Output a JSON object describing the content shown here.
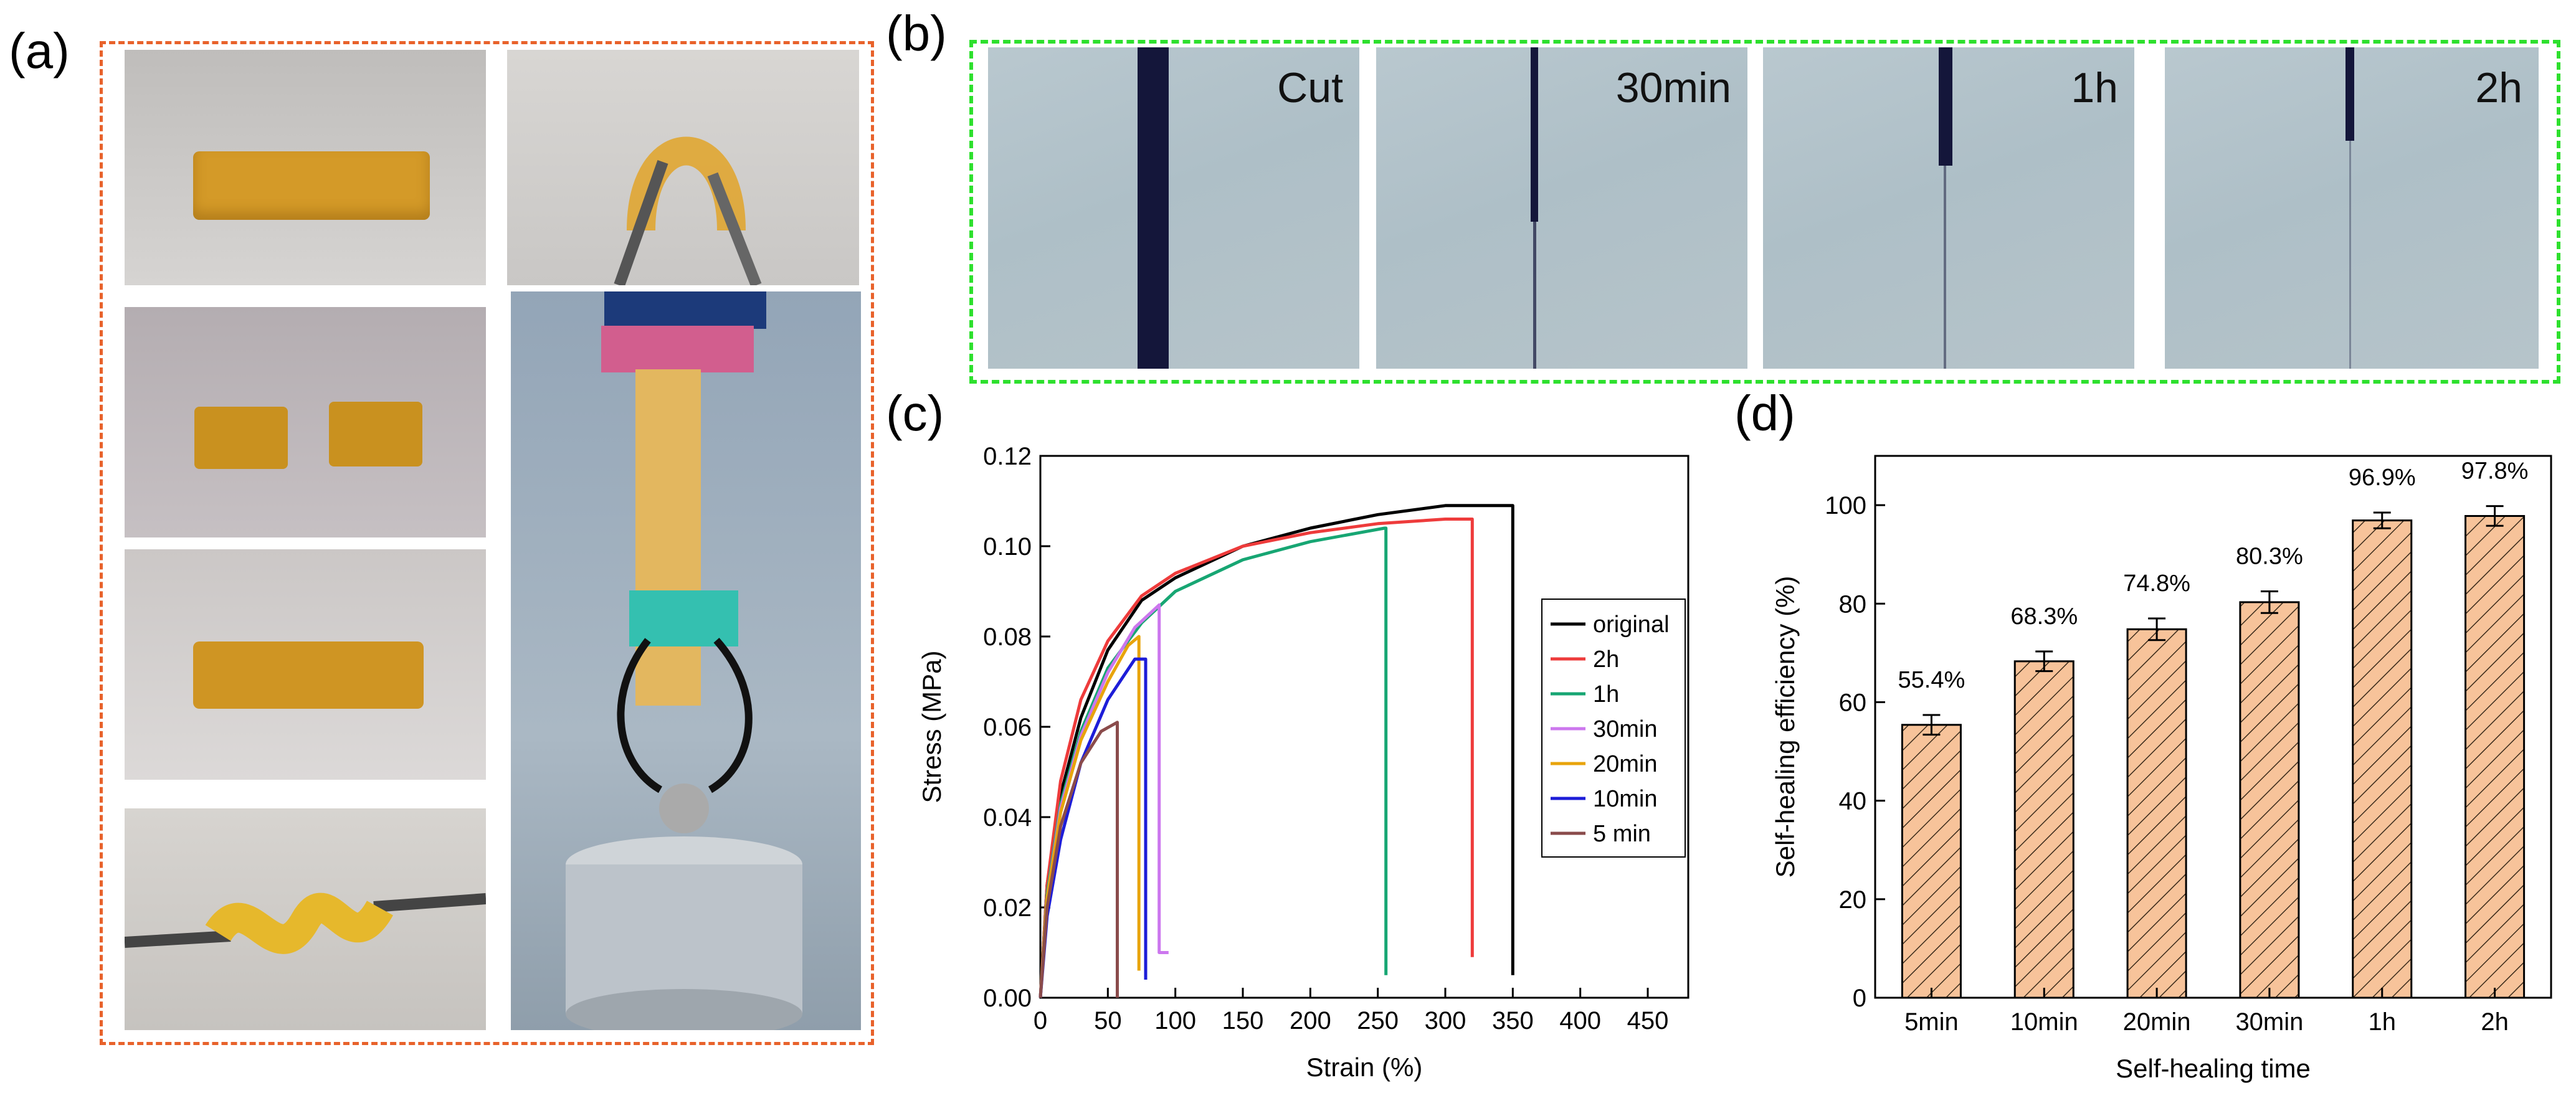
{
  "panels": {
    "a": {
      "label": "(a)"
    },
    "b": {
      "label": "(b)",
      "frames": [
        {
          "label": "Cut"
        },
        {
          "label": "30min"
        },
        {
          "label": "1h"
        },
        {
          "label": "2h"
        }
      ]
    },
    "c": {
      "label": "(c)"
    },
    "d": {
      "label": "(d)"
    }
  },
  "colors": {
    "panel_a_border": "#e8622b",
    "panel_b_border": "#2ee02e",
    "bar_fill": "#f7c39a",
    "sample_amber": "#d9a12a"
  },
  "chart_data": [
    {
      "type": "line",
      "title": "",
      "xlabel": "Strain (%)",
      "ylabel": "Stress (MPa)",
      "xlim": [
        0,
        480
      ],
      "ylim": [
        0,
        0.12
      ],
      "xticks": [
        "0",
        "50",
        "100",
        "150",
        "200",
        "250",
        "300",
        "350",
        "400",
        "450"
      ],
      "yticks": [
        "0.00",
        "0.02",
        "0.04",
        "0.06",
        "0.08",
        "0.10",
        "0.12"
      ],
      "legend_position": "right",
      "series": [
        {
          "name": "original",
          "color": "#000000",
          "points": [
            [
              0,
              0
            ],
            [
              5,
              0.025
            ],
            [
              15,
              0.045
            ],
            [
              30,
              0.062
            ],
            [
              50,
              0.077
            ],
            [
              75,
              0.088
            ],
            [
              100,
              0.093
            ],
            [
              150,
              0.1
            ],
            [
              200,
              0.104
            ],
            [
              250,
              0.107
            ],
            [
              300,
              0.109
            ],
            [
              345,
              0.109
            ],
            [
              350,
              0.109
            ],
            [
              350,
              0.005
            ]
          ]
        },
        {
          "name": "2h",
          "color": "#ee3b3b",
          "points": [
            [
              0,
              0
            ],
            [
              5,
              0.025
            ],
            [
              15,
              0.048
            ],
            [
              30,
              0.066
            ],
            [
              50,
              0.079
            ],
            [
              75,
              0.089
            ],
            [
              100,
              0.094
            ],
            [
              150,
              0.1
            ],
            [
              200,
              0.103
            ],
            [
              250,
              0.105
            ],
            [
              300,
              0.106
            ],
            [
              320,
              0.106
            ],
            [
              320,
              0.009
            ]
          ]
        },
        {
          "name": "1h",
          "color": "#17a673",
          "points": [
            [
              0,
              0
            ],
            [
              5,
              0.023
            ],
            [
              15,
              0.043
            ],
            [
              30,
              0.059
            ],
            [
              50,
              0.073
            ],
            [
              75,
              0.083
            ],
            [
              100,
              0.09
            ],
            [
              150,
              0.097
            ],
            [
              200,
              0.101
            ],
            [
              255,
              0.104
            ],
            [
              256,
              0.104
            ],
            [
              256,
              0.005
            ]
          ]
        },
        {
          "name": "30min",
          "color": "#cc77ee",
          "points": [
            [
              0,
              0
            ],
            [
              5,
              0.022
            ],
            [
              15,
              0.042
            ],
            [
              30,
              0.058
            ],
            [
              50,
              0.072
            ],
            [
              70,
              0.082
            ],
            [
              88,
              0.087
            ],
            [
              88,
              0.01
            ],
            [
              95,
              0.01
            ]
          ]
        },
        {
          "name": "20min",
          "color": "#e8a40c",
          "points": [
            [
              0,
              0
            ],
            [
              5,
              0.022
            ],
            [
              15,
              0.041
            ],
            [
              30,
              0.057
            ],
            [
              50,
              0.07
            ],
            [
              65,
              0.078
            ],
            [
              73,
              0.08
            ],
            [
              73,
              0.006
            ]
          ]
        },
        {
          "name": "10min",
          "color": "#1d1dd8",
          "points": [
            [
              0,
              0
            ],
            [
              5,
              0.018
            ],
            [
              15,
              0.035
            ],
            [
              30,
              0.052
            ],
            [
              50,
              0.066
            ],
            [
              70,
              0.075
            ],
            [
              78,
              0.075
            ],
            [
              78,
              0.004
            ]
          ]
        },
        {
          "name": "5 min",
          "color": "#8a4b4b",
          "points": [
            [
              0,
              0
            ],
            [
              5,
              0.02
            ],
            [
              15,
              0.038
            ],
            [
              30,
              0.052
            ],
            [
              45,
              0.059
            ],
            [
              57,
              0.061
            ],
            [
              57,
              0
            ]
          ]
        }
      ]
    },
    {
      "type": "bar",
      "title": "",
      "xlabel": "Self-healing time",
      "ylabel": "Self-healing efficiency (%)",
      "ylim": [
        0,
        110
      ],
      "yticks": [
        "0",
        "20",
        "40",
        "60",
        "80",
        "100"
      ],
      "categories": [
        "5min",
        "10min",
        "20min",
        "30min",
        "1h",
        "2h"
      ],
      "values": [
        55.4,
        68.3,
        74.8,
        80.3,
        96.9,
        97.8
      ],
      "errors": [
        2.0,
        2.0,
        2.2,
        2.2,
        1.6,
        2.0
      ],
      "data_labels": [
        "55.4%",
        "68.3%",
        "74.8%",
        "80.3%",
        "96.9%",
        "97.8%"
      ]
    }
  ]
}
